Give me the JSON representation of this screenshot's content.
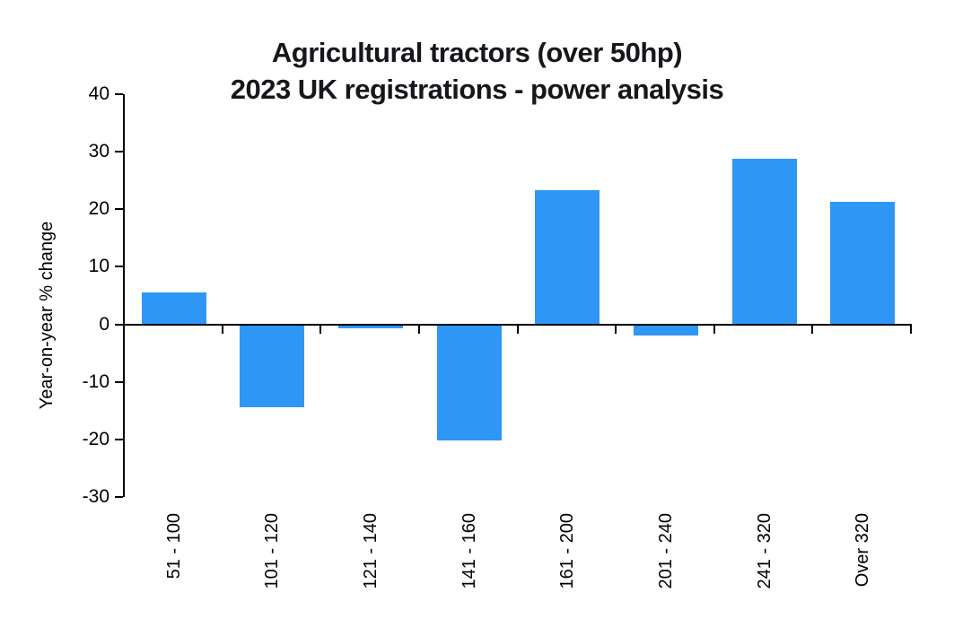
{
  "title": {
    "line1": "Agricultural tractors (over 50hp)",
    "line2": "2023 UK registrations - power analysis"
  },
  "chart_data": {
    "type": "bar",
    "title": "Agricultural tractors (over 50hp) 2023 UK registrations - power analysis",
    "categories": [
      "51 - 100",
      "101 - 120",
      "121 - 140",
      "141 - 160",
      "161 - 200",
      "201 - 240",
      "241 - 320",
      "Over 320"
    ],
    "values": [
      5.6,
      -14.4,
      -0.7,
      -20.2,
      23.3,
      -2.0,
      28.8,
      21.3
    ],
    "xlabel": "",
    "ylabel": "Year-on-year  % change",
    "ylim": [
      -30,
      40
    ],
    "yticks": [
      40,
      30,
      20,
      10,
      0,
      -10,
      -20,
      -30
    ],
    "grid": false,
    "legend": false,
    "bar_color": "#2E97F6",
    "axis_color": "#000000",
    "title_color": "#17171b"
  }
}
